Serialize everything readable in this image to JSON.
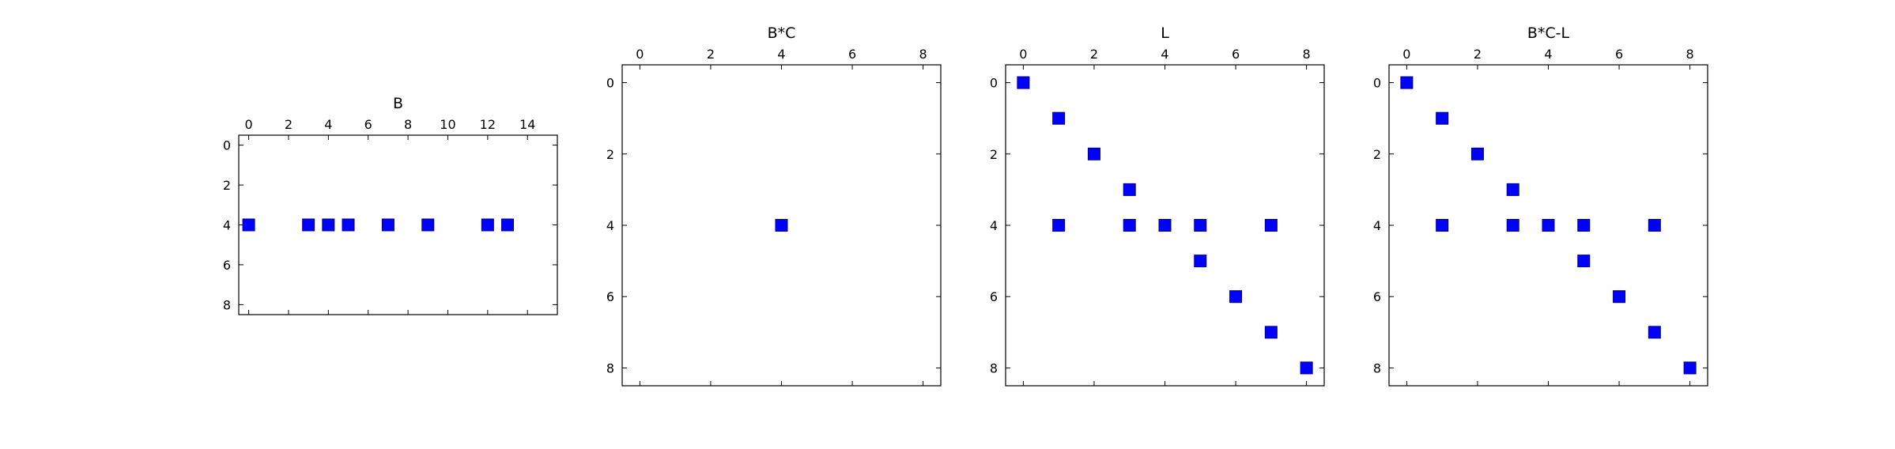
{
  "chart_data": [
    {
      "type": "scatter",
      "title": "B",
      "xlabel": "",
      "ylabel": "",
      "xlim": [
        -0.5,
        15.5
      ],
      "ylim": [
        8.5,
        -0.5
      ],
      "x_ticks": [
        0,
        2,
        4,
        6,
        8,
        10,
        12,
        14
      ],
      "y_ticks": [
        0,
        2,
        4,
        6,
        8
      ],
      "x_tick_position": "top",
      "y_axis_inverted": true,
      "grid": false,
      "marker": "square",
      "marker_color": "#0000ff",
      "points": [
        {
          "x": 0,
          "y": 4
        },
        {
          "x": 3,
          "y": 4
        },
        {
          "x": 4,
          "y": 4
        },
        {
          "x": 5,
          "y": 4
        },
        {
          "x": 7,
          "y": 4
        },
        {
          "x": 9,
          "y": 4
        },
        {
          "x": 12,
          "y": 4
        },
        {
          "x": 13,
          "y": 4
        }
      ]
    },
    {
      "type": "scatter",
      "title": "B*C",
      "xlabel": "",
      "ylabel": "",
      "xlim": [
        -0.5,
        8.5
      ],
      "ylim": [
        8.5,
        -0.5
      ],
      "x_ticks": [
        0,
        2,
        4,
        6,
        8
      ],
      "y_ticks": [
        0,
        2,
        4,
        6,
        8
      ],
      "x_tick_position": "top",
      "y_axis_inverted": true,
      "grid": false,
      "marker": "square",
      "marker_color": "#0000ff",
      "points": [
        {
          "x": 4,
          "y": 4
        }
      ]
    },
    {
      "type": "scatter",
      "title": "L",
      "xlabel": "",
      "ylabel": "",
      "xlim": [
        -0.5,
        8.5
      ],
      "ylim": [
        8.5,
        -0.5
      ],
      "x_ticks": [
        0,
        2,
        4,
        6,
        8
      ],
      "y_ticks": [
        0,
        2,
        4,
        6,
        8
      ],
      "x_tick_position": "top",
      "y_axis_inverted": true,
      "grid": false,
      "marker": "square",
      "marker_color": "#0000ff",
      "points": [
        {
          "x": 0,
          "y": 0
        },
        {
          "x": 1,
          "y": 1
        },
        {
          "x": 2,
          "y": 2
        },
        {
          "x": 3,
          "y": 3
        },
        {
          "x": 1,
          "y": 4
        },
        {
          "x": 3,
          "y": 4
        },
        {
          "x": 4,
          "y": 4
        },
        {
          "x": 5,
          "y": 4
        },
        {
          "x": 7,
          "y": 4
        },
        {
          "x": 5,
          "y": 5
        },
        {
          "x": 6,
          "y": 6
        },
        {
          "x": 7,
          "y": 7
        },
        {
          "x": 8,
          "y": 8
        }
      ]
    },
    {
      "type": "scatter",
      "title": "B*C-L",
      "xlabel": "",
      "ylabel": "",
      "xlim": [
        -0.5,
        8.5
      ],
      "ylim": [
        8.5,
        -0.5
      ],
      "x_ticks": [
        0,
        2,
        4,
        6,
        8
      ],
      "y_ticks": [
        0,
        2,
        4,
        6,
        8
      ],
      "x_tick_position": "top",
      "y_axis_inverted": true,
      "grid": false,
      "marker": "square",
      "marker_color": "#0000ff",
      "points": [
        {
          "x": 0,
          "y": 0
        },
        {
          "x": 1,
          "y": 1
        },
        {
          "x": 2,
          "y": 2
        },
        {
          "x": 3,
          "y": 3
        },
        {
          "x": 1,
          "y": 4
        },
        {
          "x": 3,
          "y": 4
        },
        {
          "x": 4,
          "y": 4
        },
        {
          "x": 5,
          "y": 4
        },
        {
          "x": 7,
          "y": 4
        },
        {
          "x": 5,
          "y": 5
        },
        {
          "x": 6,
          "y": 6
        },
        {
          "x": 7,
          "y": 7
        },
        {
          "x": 8,
          "y": 8
        }
      ]
    }
  ]
}
